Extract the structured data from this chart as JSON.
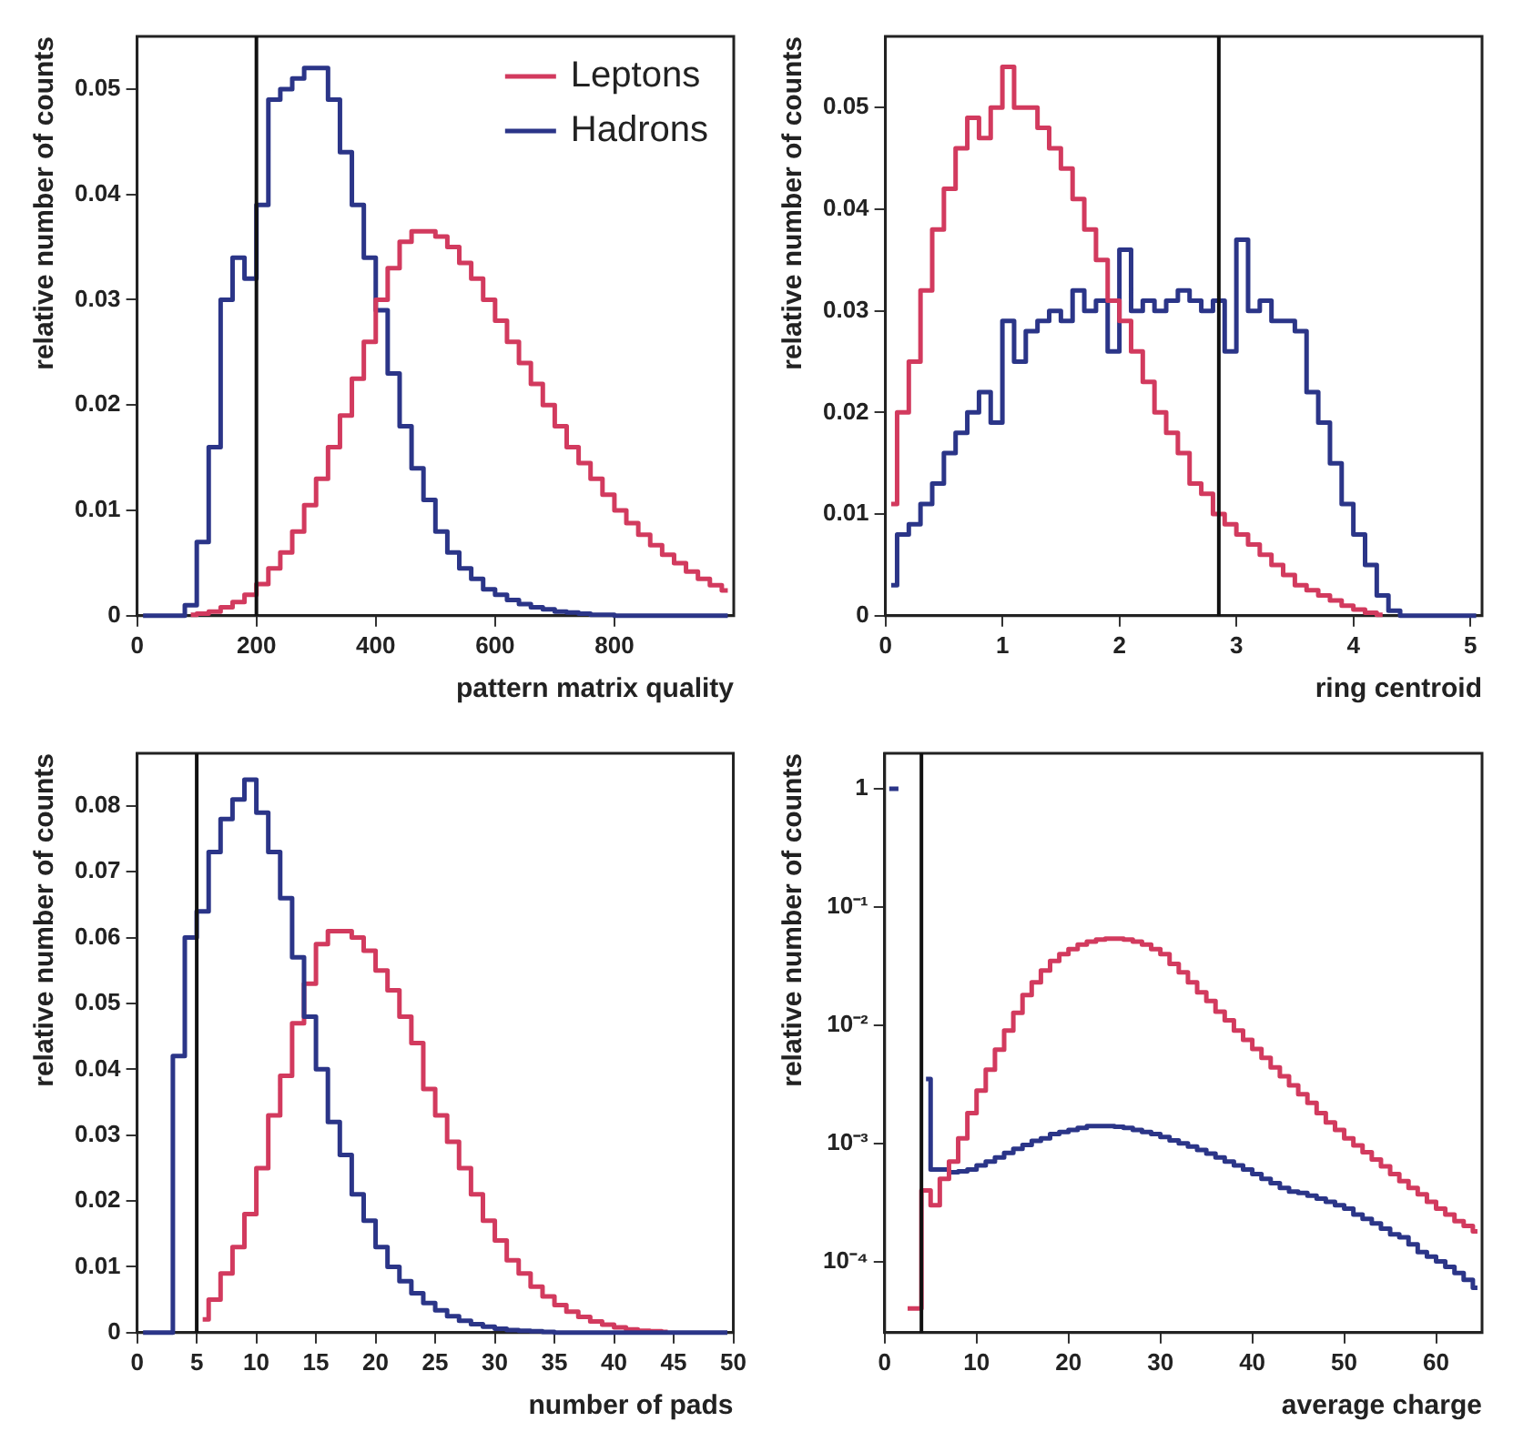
{
  "chart_data": [
    {
      "type": "step",
      "xlabel": "pattern matrix quality",
      "ylabel": "relative number of counts",
      "legend": "top right",
      "x": [
        10,
        30,
        50,
        70,
        90,
        110,
        130,
        150,
        170,
        190,
        210,
        230,
        250,
        270,
        290,
        310,
        330,
        350,
        370,
        390,
        410,
        430,
        450,
        470,
        490,
        510,
        530,
        550,
        570,
        590,
        610,
        630,
        650,
        670,
        690,
        710,
        730,
        750,
        770,
        790,
        810,
        830,
        850,
        870,
        890,
        910,
        930,
        950,
        970,
        990
      ],
      "series": [
        {
          "name": "Leptons",
          "color": "#d23a5e",
          "values": [
            null,
            null,
            null,
            null,
            0.0001,
            0.0002,
            0.0004,
            0.0008,
            0.0013,
            0.002,
            0.003,
            0.0045,
            0.006,
            0.008,
            0.0105,
            0.013,
            0.016,
            0.019,
            0.0225,
            0.026,
            0.03,
            0.033,
            0.0355,
            0.0365,
            0.0365,
            0.036,
            0.035,
            0.0335,
            0.032,
            0.03,
            0.028,
            0.026,
            0.024,
            0.022,
            0.02,
            0.018,
            0.016,
            0.0145,
            0.013,
            0.0115,
            0.01,
            0.0088,
            0.0077,
            0.0067,
            0.0058,
            0.005,
            0.0042,
            0.0035,
            0.0029,
            0.0024
          ]
        },
        {
          "name": "Hadrons",
          "color": "#2b3588",
          "values": [
            0,
            0,
            0,
            0,
            0.001,
            0.007,
            0.016,
            0.03,
            0.034,
            0.032,
            0.039,
            0.049,
            0.05,
            0.051,
            0.052,
            0.052,
            0.049,
            0.044,
            0.039,
            0.034,
            0.029,
            0.023,
            0.018,
            0.014,
            0.011,
            0.008,
            0.006,
            0.0045,
            0.0035,
            0.0025,
            0.002,
            0.0015,
            0.0011,
            0.0008,
            0.0006,
            0.0004,
            0.0003,
            0.0002,
            0.0001,
            0.0001,
            0,
            0,
            0,
            0,
            0,
            0,
            0,
            0,
            0,
            0
          ]
        }
      ],
      "xlim": [
        0,
        1000
      ],
      "xticks": [
        0,
        200,
        400,
        600,
        800
      ],
      "ylim": [
        0,
        0.055
      ],
      "yticks": [
        0,
        0.01,
        0.02,
        0.03,
        0.04,
        0.05
      ],
      "ref_lines": [
        {
          "axis": "x",
          "value": 200
        }
      ]
    },
    {
      "type": "step",
      "xlabel": "ring centroid",
      "ylabel": "relative number of counts",
      "x": [
        0.05,
        0.15,
        0.25,
        0.35,
        0.45,
        0.55,
        0.65,
        0.75,
        0.85,
        0.95,
        1.05,
        1.15,
        1.25,
        1.35,
        1.45,
        1.55,
        1.65,
        1.75,
        1.85,
        1.95,
        2.05,
        2.15,
        2.25,
        2.35,
        2.45,
        2.55,
        2.65,
        2.75,
        2.85,
        2.95,
        3.05,
        3.15,
        3.25,
        3.35,
        3.45,
        3.55,
        3.65,
        3.75,
        3.85,
        3.95,
        4.05,
        4.15,
        4.25,
        4.35,
        4.45,
        4.55,
        4.65,
        4.75,
        4.85,
        4.95,
        5.05
      ],
      "series": [
        {
          "color": "#d23a5e",
          "values": [
            0.011,
            0.02,
            0.025,
            0.032,
            0.038,
            0.042,
            0.046,
            0.049,
            0.047,
            0.05,
            0.054,
            0.05,
            0.05,
            0.048,
            0.046,
            0.044,
            0.041,
            0.038,
            0.035,
            0.031,
            0.029,
            0.026,
            0.023,
            0.02,
            0.018,
            0.016,
            0.013,
            0.012,
            0.01,
            0.009,
            0.008,
            0.007,
            0.006,
            0.005,
            0.004,
            0.003,
            0.0025,
            0.002,
            0.0015,
            0.001,
            0.0006,
            0.0003,
            0.0001,
            null,
            null,
            null,
            null,
            null,
            null,
            null,
            null
          ]
        },
        {
          "color": "#2b3588",
          "values": [
            0.003,
            0.008,
            0.009,
            0.011,
            0.013,
            0.016,
            0.018,
            0.02,
            0.022,
            0.019,
            0.029,
            0.025,
            0.028,
            0.029,
            0.03,
            0.029,
            0.032,
            0.03,
            0.031,
            0.026,
            0.036,
            0.03,
            0.031,
            0.03,
            0.031,
            0.032,
            0.031,
            0.03,
            0.031,
            0.026,
            0.037,
            0.03,
            0.031,
            0.029,
            0.029,
            0.028,
            0.022,
            0.019,
            0.015,
            0.011,
            0.008,
            0.005,
            0.002,
            0.0005,
            0,
            0,
            0,
            0,
            0,
            0,
            0
          ]
        }
      ],
      "xlim": [
        0,
        5.1
      ],
      "xticks": [
        0,
        1,
        2,
        3,
        4,
        5
      ],
      "ylim": [
        0,
        0.057
      ],
      "yticks": [
        0,
        0.01,
        0.02,
        0.03,
        0.04,
        0.05
      ],
      "ref_lines": [
        {
          "axis": "x",
          "value": 2.85
        }
      ]
    },
    {
      "type": "step",
      "xlabel": "number of pads",
      "ylabel": "relative number of counts",
      "x": [
        0.5,
        1.5,
        2.5,
        3.5,
        4.5,
        5.5,
        6.5,
        7.5,
        8.5,
        9.5,
        10.5,
        11.5,
        12.5,
        13.5,
        14.5,
        15.5,
        16.5,
        17.5,
        18.5,
        19.5,
        20.5,
        21.5,
        22.5,
        23.5,
        24.5,
        25.5,
        26.5,
        27.5,
        28.5,
        29.5,
        30.5,
        31.5,
        32.5,
        33.5,
        34.5,
        35.5,
        36.5,
        37.5,
        38.5,
        39.5,
        40.5,
        41.5,
        42.5,
        43.5,
        44.5,
        45.5,
        46.5,
        47.5,
        48.5,
        49.5
      ],
      "series": [
        {
          "color": "#2b3588",
          "values": [
            0,
            0,
            0,
            0.042,
            0.06,
            0.064,
            0.073,
            0.078,
            0.081,
            0.084,
            0.079,
            0.073,
            0.066,
            0.057,
            0.048,
            0.04,
            0.032,
            0.027,
            0.021,
            0.017,
            0.013,
            0.01,
            0.0078,
            0.006,
            0.0045,
            0.0034,
            0.0025,
            0.0018,
            0.0013,
            0.0009,
            0.0006,
            0.0004,
            0.0003,
            0.0002,
            0.0001,
            0,
            0,
            0,
            0,
            0,
            0,
            0,
            0,
            0,
            0,
            0,
            0,
            0,
            0,
            0
          ]
        },
        {
          "color": "#d23a5e",
          "values": [
            null,
            null,
            null,
            null,
            null,
            0.002,
            0.005,
            0.009,
            0.013,
            0.018,
            0.025,
            0.033,
            0.039,
            0.047,
            0.053,
            0.059,
            0.061,
            0.061,
            0.06,
            0.058,
            0.055,
            0.052,
            0.048,
            0.044,
            0.037,
            0.033,
            0.029,
            0.025,
            0.021,
            0.017,
            0.014,
            0.011,
            0.009,
            0.007,
            0.0055,
            0.0042,
            0.0032,
            0.0024,
            0.0017,
            0.0012,
            0.0008,
            0.0005,
            0.0003,
            0.0002,
            0.0001,
            null,
            null,
            null,
            null,
            null
          ]
        }
      ],
      "xlim": [
        0,
        50
      ],
      "xticks": [
        0,
        5,
        10,
        15,
        20,
        25,
        30,
        35,
        40,
        45,
        50
      ],
      "ylim": [
        0,
        0.088
      ],
      "yticks": [
        0,
        0.01,
        0.02,
        0.03,
        0.04,
        0.05,
        0.06,
        0.07,
        0.08
      ],
      "ref_lines": [
        {
          "axis": "x",
          "value": 5
        }
      ]
    },
    {
      "type": "step",
      "xlabel": "average charge",
      "ylabel": "relative number of counts",
      "log": true,
      "x": [
        0.5,
        1.5,
        2.5,
        3.5,
        4.5,
        5.5,
        6.5,
        7.5,
        8.5,
        9.5,
        10.5,
        11.5,
        12.5,
        13.5,
        14.5,
        15.5,
        16.5,
        17.5,
        18.5,
        19.5,
        20.5,
        21.5,
        22.5,
        23.5,
        24.5,
        25.5,
        26.5,
        27.5,
        28.5,
        29.5,
        30.5,
        31.5,
        32.5,
        33.5,
        34.5,
        35.5,
        36.5,
        37.5,
        38.5,
        39.5,
        40.5,
        41.5,
        42.5,
        43.5,
        44.5,
        45.5,
        46.5,
        47.5,
        48.5,
        49.5,
        50.5,
        51.5,
        52.5,
        53.5,
        54.5,
        55.5,
        56.5,
        57.5,
        58.5,
        59.5,
        60.5,
        61.5,
        62.5,
        63.5,
        64.5
      ],
      "series": [
        {
          "color": "#d23a5e",
          "values": [
            null,
            null,
            4e-05,
            4e-05,
            0.0004,
            0.0003,
            0.0005,
            0.0007,
            0.0011,
            0.0018,
            0.0028,
            0.0042,
            0.0062,
            0.009,
            0.0127,
            0.018,
            0.023,
            0.029,
            0.035,
            0.04,
            0.044,
            0.048,
            0.051,
            0.053,
            0.054,
            0.054,
            0.053,
            0.051,
            0.048,
            0.044,
            0.04,
            0.033,
            0.028,
            0.023,
            0.019,
            0.016,
            0.013,
            0.011,
            0.009,
            0.0075,
            0.0063,
            0.0053,
            0.0044,
            0.0037,
            0.0031,
            0.0026,
            0.0022,
            0.0018,
            0.0015,
            0.0013,
            0.0011,
            0.00096,
            0.00084,
            0.00073,
            0.00064,
            0.00055,
            0.00048,
            0.00042,
            0.00037,
            0.00032,
            0.00028,
            0.00025,
            0.00022,
            0.0002,
            0.00018
          ]
        },
        {
          "color": "#2b3588",
          "values": [
            1,
            1,
            null,
            null,
            0.0035,
            0.0006,
            0.0006,
            0.00057,
            0.00058,
            0.0006,
            0.00065,
            0.0007,
            0.00076,
            0.00083,
            0.0009,
            0.00097,
            0.00105,
            0.0011,
            0.0012,
            0.00125,
            0.0013,
            0.00135,
            0.0014,
            0.0014,
            0.0014,
            0.00138,
            0.00135,
            0.0013,
            0.00125,
            0.0012,
            0.00113,
            0.00106,
            0.001,
            0.00094,
            0.00088,
            0.00082,
            0.00076,
            0.0007,
            0.00065,
            0.0006,
            0.00055,
            0.0005,
            0.00046,
            0.00042,
            0.00039,
            0.00038,
            0.00036,
            0.00034,
            0.00032,
            0.0003,
            0.00028,
            0.00025,
            0.00023,
            0.00021,
            0.00019,
            0.00017,
            0.00016,
            0.00014,
            0.00012,
            0.00011,
            0.0001,
            9e-05,
            8e-05,
            7e-05,
            6e-05
          ]
        }
      ],
      "xlim": [
        0,
        65
      ],
      "xticks": [
        0,
        10,
        20,
        30,
        40,
        50,
        60
      ],
      "ylim": [
        2.5e-05,
        2
      ],
      "yticks": [
        {
          "value": 0.0001,
          "label": "10⁻⁴"
        },
        {
          "value": 0.001,
          "label": "10⁻³"
        },
        {
          "value": 0.01,
          "label": "10⁻²"
        },
        {
          "value": 0.1,
          "label": "10⁻¹"
        },
        1
      ],
      "ref_lines": [
        {
          "axis": "x",
          "value": 4
        }
      ]
    }
  ]
}
